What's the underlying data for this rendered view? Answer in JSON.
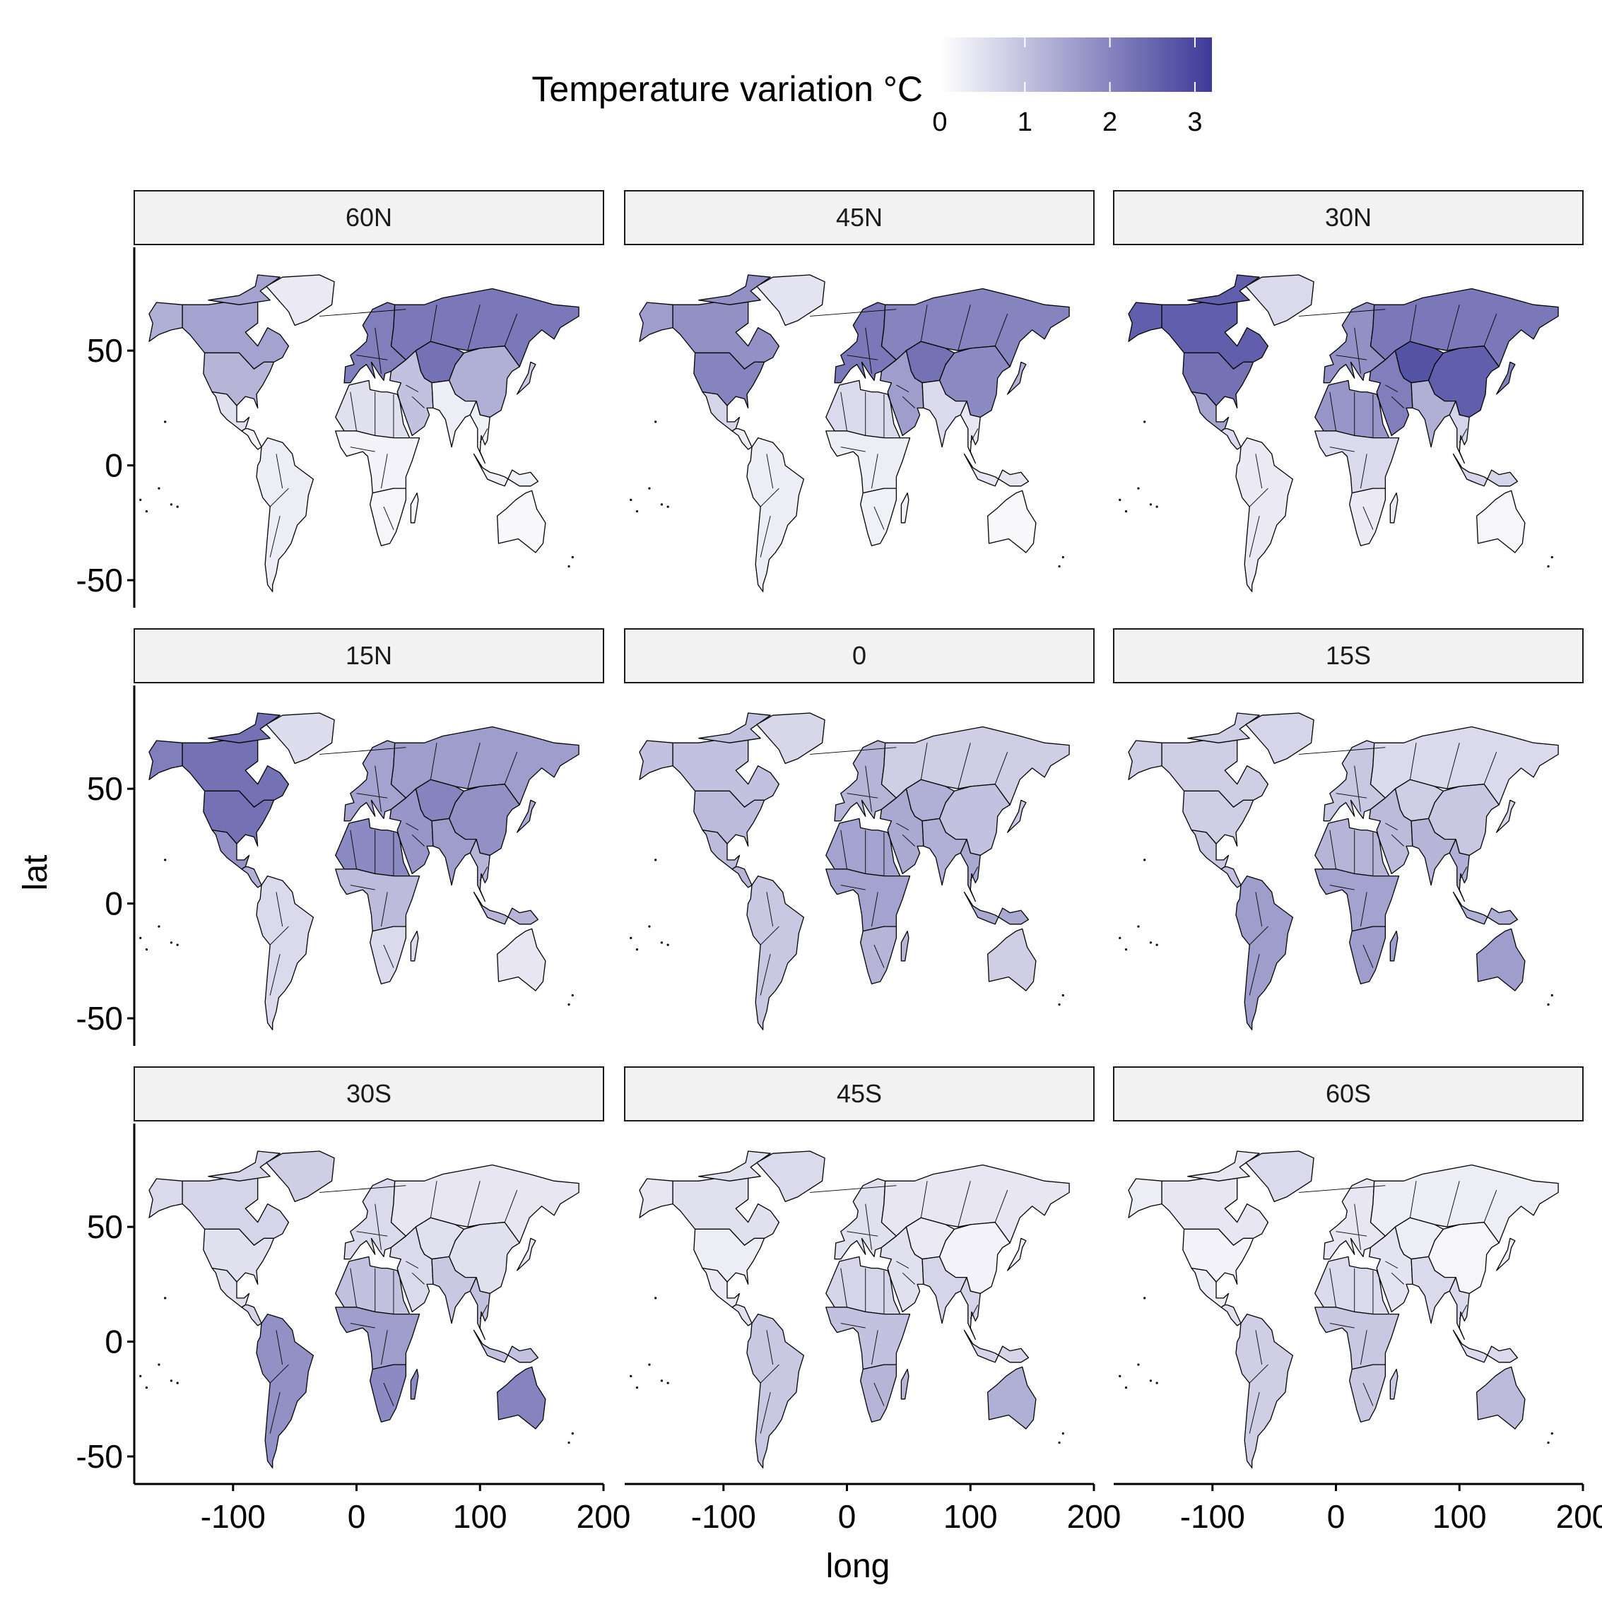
{
  "chart_data": {
    "type": "choropleth-facet-map",
    "legend": {
      "title": "Temperature variation °C",
      "ticks": [
        "0",
        "1",
        "2",
        "3"
      ],
      "range": [
        0,
        3.2
      ],
      "low_color": "#ffffff",
      "high_color": "#3d3a98",
      "position": "top"
    },
    "xlabel": "long",
    "ylabel": "lat",
    "x_ticks": [
      -100,
      0,
      100,
      200
    ],
    "x_tick_labels": [
      "-100",
      "0",
      "100",
      "200"
    ],
    "y_ticks": [
      -50,
      0,
      50
    ],
    "y_tick_labels": [
      "-50",
      "0",
      "50"
    ],
    "xlim": [
      -180,
      200
    ],
    "ylim": [
      -62,
      95
    ],
    "grid": false,
    "panels": [
      {
        "label": "60N",
        "regions": {
          "greenland": 0.35,
          "canada": 1.5,
          "alaska": 1.3,
          "usa": 1.2,
          "mexico": 0.5,
          "central_america": 0.2,
          "south_america": 0.3,
          "europe": 2.1,
          "russia": 2.2,
          "central_asia": 2.3,
          "china": 1.3,
          "south_asia": 0.3,
          "middle_east": 1.0,
          "north_africa": 0.5,
          "sub_saharan_africa": 0.2,
          "southern_africa": 0.15,
          "southeast_asia": 0.25,
          "australia": 0.1,
          "japan": 0.9
        }
      },
      {
        "label": "45N",
        "regions": {
          "greenland": 0.45,
          "canada": 1.8,
          "alaska": 1.6,
          "usa": 2.0,
          "mexico": 0.7,
          "central_america": 0.3,
          "south_america": 0.3,
          "europe": 2.2,
          "russia": 2.0,
          "central_asia": 2.3,
          "china": 1.9,
          "south_asia": 0.6,
          "middle_east": 1.6,
          "north_africa": 0.6,
          "sub_saharan_africa": 0.3,
          "southern_africa": 0.25,
          "southeast_asia": 0.4,
          "australia": 0.1,
          "japan": 1.3
        }
      },
      {
        "label": "30N",
        "regions": {
          "greenland": 0.6,
          "canada": 2.6,
          "alaska": 2.6,
          "usa": 2.3,
          "mexico": 1.5,
          "central_america": 0.6,
          "south_america": 0.35,
          "europe": 1.8,
          "russia": 2.2,
          "central_asia": 2.8,
          "china": 2.6,
          "south_asia": 1.3,
          "middle_east": 2.1,
          "north_africa": 1.7,
          "sub_saharan_africa": 0.6,
          "southern_africa": 0.35,
          "southeast_asia": 0.7,
          "australia": 0.15,
          "japan": 2.1
        }
      },
      {
        "label": "15N",
        "regions": {
          "greenland": 0.55,
          "canada": 2.3,
          "alaska": 2.1,
          "usa": 2.3,
          "mexico": 1.8,
          "central_america": 1.3,
          "south_america": 0.6,
          "europe": 1.5,
          "russia": 1.6,
          "central_asia": 2.0,
          "china": 1.8,
          "south_asia": 1.6,
          "middle_east": 1.7,
          "north_africa": 1.9,
          "sub_saharan_africa": 1.1,
          "southern_africa": 0.6,
          "southeast_asia": 1.2,
          "australia": 0.4,
          "japan": 1.4
        }
      },
      {
        "label": "0",
        "regions": {
          "greenland": 0.65,
          "canada": 1.0,
          "alaska": 1.0,
          "usa": 1.1,
          "mexico": 1.1,
          "central_america": 1.2,
          "south_america": 0.9,
          "europe": 1.2,
          "russia": 0.8,
          "central_asia": 1.3,
          "china": 1.0,
          "south_asia": 1.3,
          "middle_east": 1.4,
          "north_africa": 1.5,
          "sub_saharan_africa": 1.5,
          "southern_africa": 1.2,
          "southeast_asia": 1.4,
          "australia": 0.8,
          "japan": 0.9
        }
      },
      {
        "label": "15S",
        "regions": {
          "greenland": 0.7,
          "canada": 0.8,
          "alaska": 0.8,
          "usa": 0.8,
          "mexico": 0.9,
          "central_america": 1.0,
          "south_america": 1.6,
          "europe": 0.9,
          "russia": 0.6,
          "central_asia": 0.8,
          "china": 0.9,
          "south_asia": 1.2,
          "middle_east": 1.1,
          "north_africa": 1.2,
          "sub_saharan_africa": 1.5,
          "southern_africa": 1.6,
          "southeast_asia": 1.3,
          "australia": 1.6,
          "japan": 0.7
        }
      },
      {
        "label": "30S",
        "regions": {
          "greenland": 0.8,
          "canada": 0.7,
          "alaska": 0.6,
          "usa": 0.5,
          "mexico": 0.5,
          "central_america": 0.7,
          "south_america": 1.8,
          "europe": 0.6,
          "russia": 0.4,
          "central_asia": 0.5,
          "china": 0.5,
          "south_asia": 0.9,
          "middle_east": 0.6,
          "north_africa": 1.0,
          "sub_saharan_africa": 1.6,
          "southern_africa": 1.9,
          "southeast_asia": 1.0,
          "australia": 2.0,
          "japan": 0.4
        }
      },
      {
        "label": "45S",
        "regions": {
          "greenland": 0.6,
          "canada": 0.5,
          "alaska": 0.4,
          "usa": 0.3,
          "mexico": 0.35,
          "central_america": 0.5,
          "south_america": 0.9,
          "europe": 0.5,
          "russia": 0.4,
          "central_asia": 0.35,
          "china": 0.2,
          "south_asia": 0.7,
          "middle_east": 0.5,
          "north_africa": 0.7,
          "sub_saharan_africa": 1.0,
          "southern_africa": 1.2,
          "southeast_asia": 0.7,
          "australia": 1.3,
          "japan": 0.3
        }
      },
      {
        "label": "60S",
        "regions": {
          "greenland": 0.6,
          "canada": 0.4,
          "alaska": 0.3,
          "usa": 0.2,
          "mexico": 0.3,
          "central_america": 0.5,
          "south_america": 0.8,
          "europe": 0.4,
          "russia": 0.3,
          "central_asia": 0.3,
          "china": 0.15,
          "south_asia": 0.6,
          "middle_east": 0.45,
          "north_africa": 0.6,
          "sub_saharan_africa": 0.9,
          "southern_africa": 0.9,
          "southeast_asia": 0.6,
          "australia": 1.1,
          "japan": 0.3
        }
      }
    ]
  }
}
